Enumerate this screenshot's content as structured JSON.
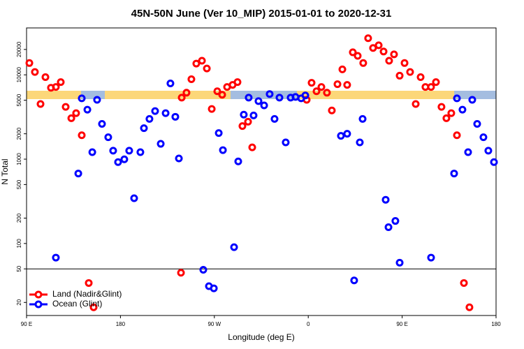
{
  "chart_data": {
    "type": "scatter",
    "title": "45N-50N June (Ver 10_MIP)   2015-01-01 to 2020-12-31",
    "xlabel": "Longitude (deg E)",
    "ylabel": "N Total",
    "xlim": [
      90,
      540
    ],
    "ylim": [
      14,
      36000
    ],
    "log_y": true,
    "xticks": [
      {
        "value": 90,
        "label": "90 E"
      },
      {
        "value": 180,
        "label": "180"
      },
      {
        "value": 270,
        "label": "90 W"
      },
      {
        "value": 360,
        "label": "0"
      },
      {
        "value": 450,
        "label": "90 E"
      },
      {
        "value": 540,
        "label": "180"
      }
    ],
    "yticks": [
      20,
      50,
      100,
      200,
      500,
      1000,
      2000,
      5000,
      10000,
      20000
    ],
    "hline": 50,
    "legend": "bottom-left",
    "series": [
      {
        "name": "Land (Nadir&Glint)",
        "color": "#ff0000",
        "x": [
          92.7,
          98.0,
          103.4,
          108.1,
          113.4,
          118.1,
          122.8,
          127.5,
          132.9,
          137.5,
          142.9,
          149.6,
          154.3,
          238.0,
          238.7,
          243.3,
          248.0,
          252.7,
          258.1,
          262.8,
          267.5,
          272.8,
          277.5,
          282.2,
          287.5,
          292.2,
          296.9,
          302.3,
          306.3,
          358.5,
          363.2,
          367.9,
          372.6,
          377.9,
          382.6,
          388.0,
          392.7,
          397.3,
          402.7,
          407.4,
          412.7,
          417.4,
          422.1,
          427.5,
          432.2,
          437.5,
          442.2,
          447.6,
          452.3,
          457.6,
          463.0,
          467.7,
          472.3,
          477.7,
          482.4,
          487.7,
          492.4,
          497.1,
          502.5,
          509.2,
          514.5
        ],
        "values": [
          13800,
          10800,
          4510,
          9400,
          7030,
          7180,
          8200,
          4170,
          3060,
          3510,
          1920,
          34,
          17.5,
          45,
          5370,
          6140,
          8870,
          13600,
          14700,
          11900,
          3940,
          6380,
          5800,
          7180,
          7600,
          8200,
          2470,
          2780,
          1380,
          5060,
          8050,
          6380,
          7180,
          6140,
          3780,
          7740,
          11600,
          7600,
          18500,
          16800,
          13800,
          27200,
          20800,
          22400,
          18900,
          14700,
          17500,
          9770,
          13800,
          10800,
          4510,
          9400,
          7180,
          7180,
          8200,
          4170,
          3060,
          3510,
          1920,
          34,
          17.5
        ]
      },
      {
        "name": "Ocean (Glint)",
        "color": "#0000ff",
        "x": [
          118.1,
          139.6,
          142.9,
          148.3,
          153.0,
          157.6,
          162.3,
          168.3,
          173.0,
          177.7,
          183.7,
          188.4,
          193.1,
          199.1,
          202.5,
          207.8,
          213.2,
          218.6,
          223.3,
          227.9,
          232.6,
          236.0,
          259.4,
          264.8,
          269.5,
          274.2,
          278.2,
          288.9,
          292.9,
          298.2,
          302.9,
          307.6,
          312.3,
          317.7,
          323.0,
          327.7,
          332.4,
          338.4,
          343.1,
          347.8,
          353.2,
          357.2,
          391.3,
          397.3,
          404.0,
          409.4,
          412.1,
          434.2,
          436.9,
          443.5,
          447.6,
          477.7,
          499.8,
          502.5,
          507.8,
          513.2,
          517.2,
          521.9,
          527.9,
          532.6,
          538.0
        ],
        "values": [
          68,
          676,
          5260,
          3860,
          1210,
          5060,
          2620,
          1820,
          1260,
          923,
          995,
          1260,
          344,
          1210,
          2330,
          3000,
          3720,
          1520,
          3510,
          7910,
          3180,
          1020,
          48.8,
          31.2,
          29.4,
          2040,
          1280,
          90.4,
          940,
          3370,
          5370,
          3300,
          4880,
          4340,
          5920,
          3000,
          5370,
          1580,
          5370,
          5470,
          5260,
          5690,
          1890,
          2000,
          36.5,
          1580,
          3000,
          330,
          156,
          185,
          59.2,
          68,
          676,
          5260,
          3860,
          1210,
          5060,
          2620,
          1820,
          1260,
          923
        ]
      }
    ]
  }
}
